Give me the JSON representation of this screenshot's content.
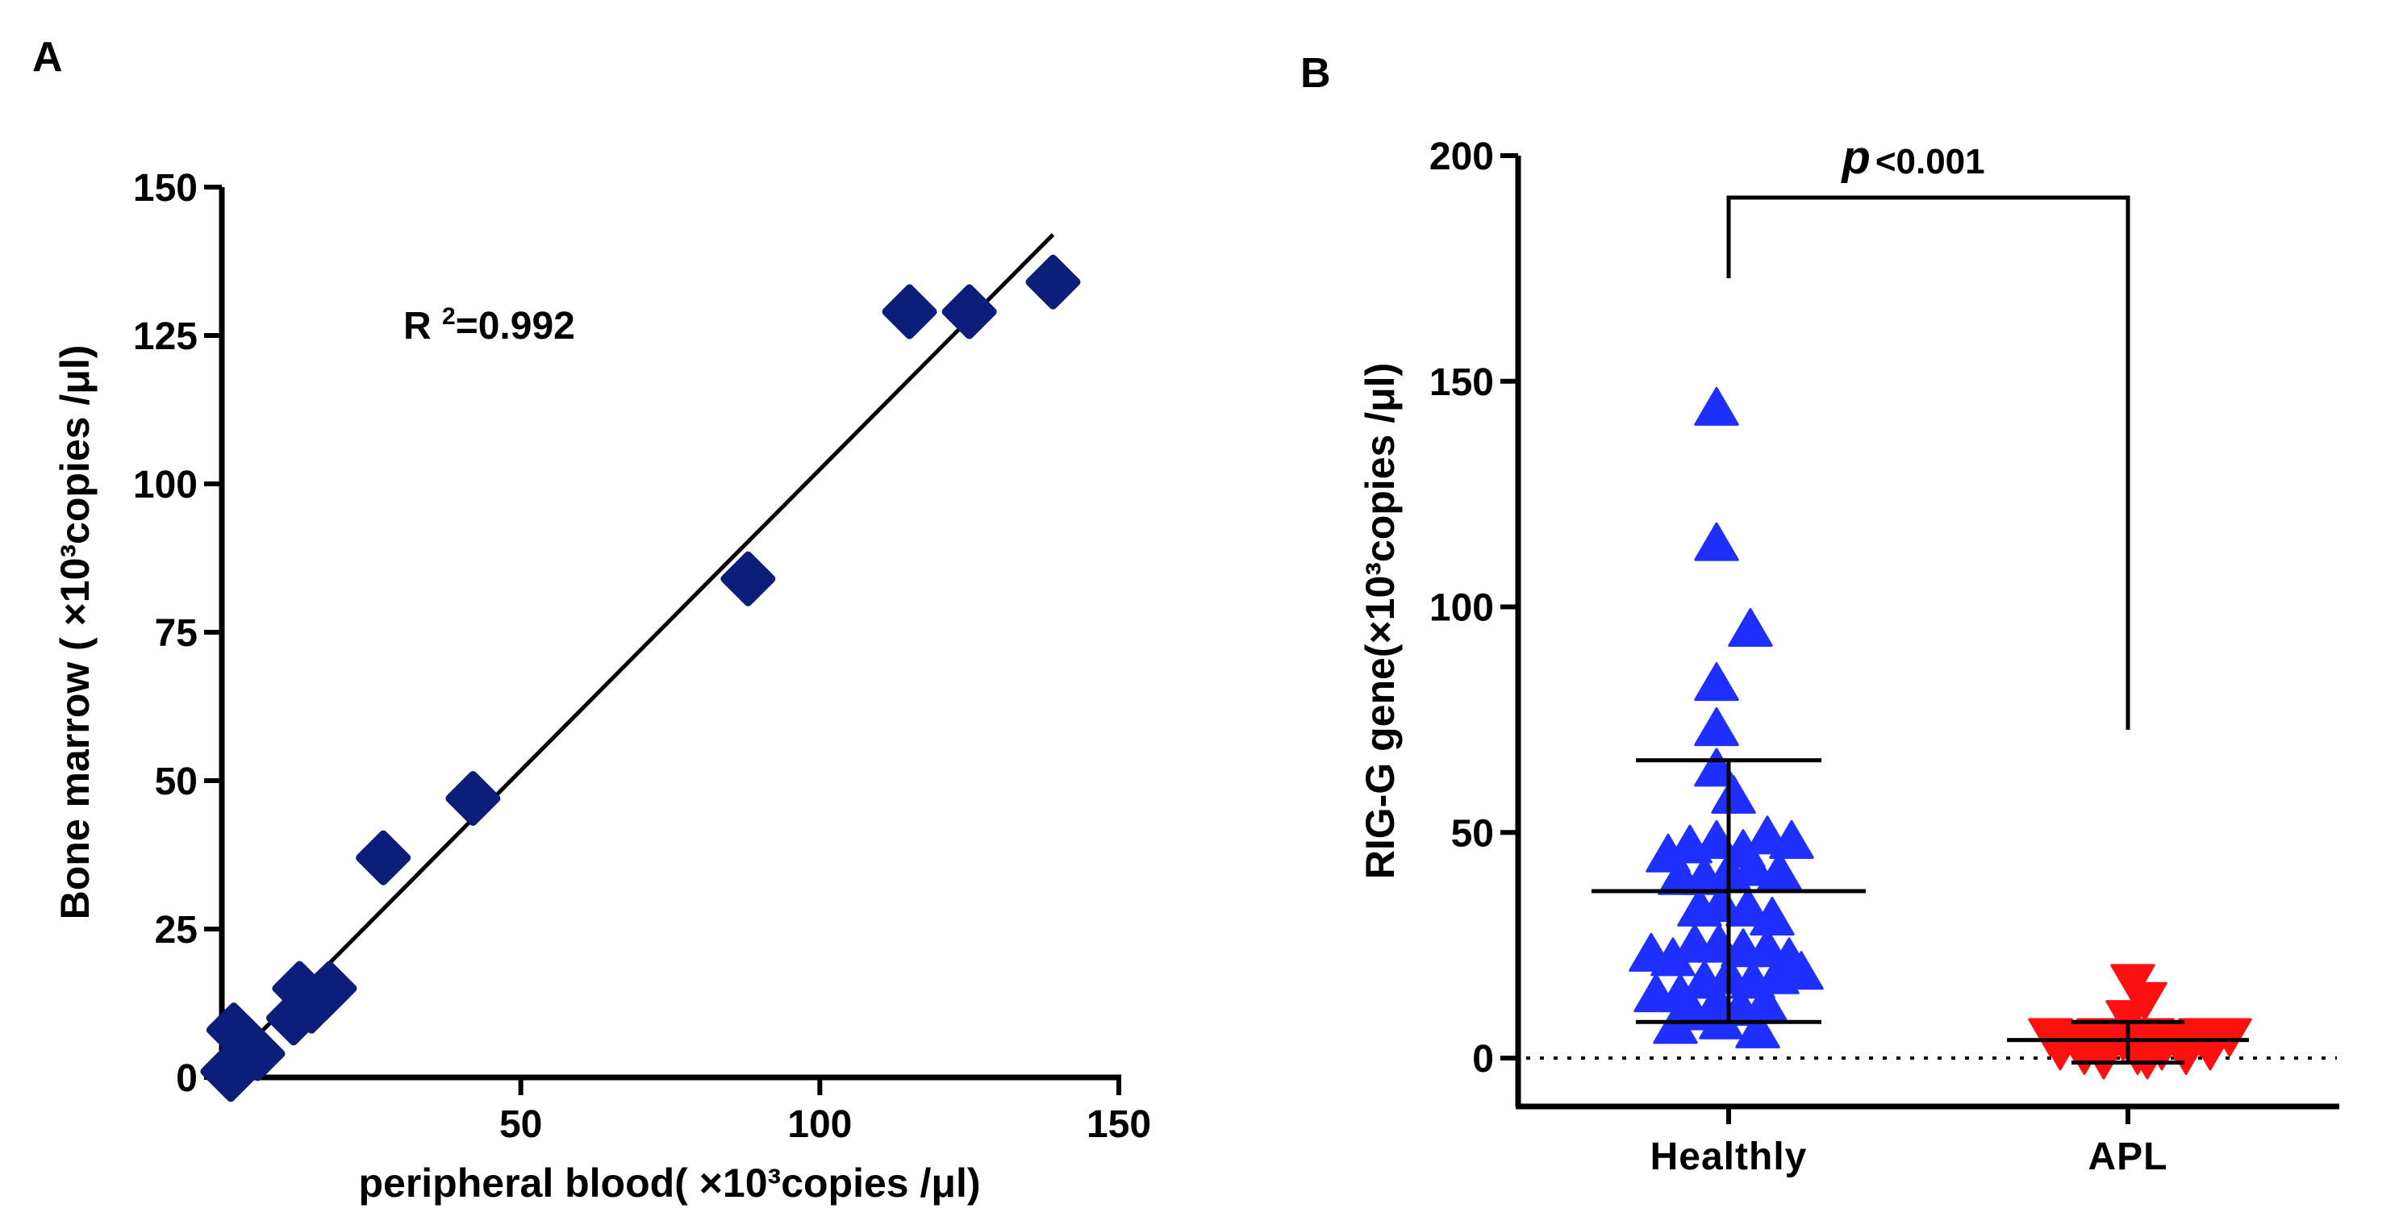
{
  "chart_data": [
    {
      "panel": "A",
      "type": "scatter",
      "xlabel": "peripheral blood( ×10³copies /μl)",
      "ylabel": "Bone marrow ( ×10³copies /μl)",
      "xlim": [
        0,
        150
      ],
      "ylim": [
        0,
        150
      ],
      "xticks": [
        50,
        100,
        150
      ],
      "yticks": [
        0,
        25,
        50,
        75,
        100,
        125,
        150
      ],
      "annotation": "R²=0.992",
      "marker": "diamond",
      "color": "#0d1d7a",
      "points": [
        {
          "x": 1,
          "y": 1
        },
        {
          "x": 2,
          "y": 2
        },
        {
          "x": 1.5,
          "y": 0.5
        },
        {
          "x": 2,
          "y": 8
        },
        {
          "x": 4,
          "y": 6
        },
        {
          "x": 6,
          "y": 4
        },
        {
          "x": 12,
          "y": 10
        },
        {
          "x": 13,
          "y": 15
        },
        {
          "x": 15,
          "y": 12
        },
        {
          "x": 17,
          "y": 14
        },
        {
          "x": 18,
          "y": 15
        },
        {
          "x": 27,
          "y": 37
        },
        {
          "x": 42,
          "y": 47
        },
        {
          "x": 88,
          "y": 84
        },
        {
          "x": 115,
          "y": 129
        },
        {
          "x": 125,
          "y": 129
        },
        {
          "x": 139,
          "y": 134
        }
      ],
      "fit_line": {
        "x": [
          1,
          139
        ],
        "y": [
          2,
          142
        ]
      }
    },
    {
      "panel": "B",
      "type": "scatter",
      "ylabel": "RIG-G gene(×10³copies /μl)",
      "ylim": [
        0,
        200
      ],
      "yticks": [
        0,
        50,
        100,
        150,
        200
      ],
      "categories": [
        "Healthly",
        "APL"
      ],
      "significance": {
        "prefix": "p",
        "text": "<0.001"
      },
      "series": [
        {
          "name": "Healthly",
          "marker": "triangle-up",
          "color": "#1f2fff",
          "mean": 37,
          "sd_low": 8,
          "sd_high": 66,
          "points": [
            {
              "dx": -0.05,
              "y": 144
            },
            {
              "dx": -0.05,
              "y": 114
            },
            {
              "dx": 0.09,
              "y": 95
            },
            {
              "dx": -0.05,
              "y": 83
            },
            {
              "dx": -0.05,
              "y": 73
            },
            {
              "dx": -0.05,
              "y": 64
            },
            {
              "dx": 0.02,
              "y": 58
            },
            {
              "dx": -0.25,
              "y": 45
            },
            {
              "dx": -0.16,
              "y": 47
            },
            {
              "dx": -0.05,
              "y": 48
            },
            {
              "dx": 0.06,
              "y": 46
            },
            {
              "dx": 0.16,
              "y": 49
            },
            {
              "dx": 0.26,
              "y": 48
            },
            {
              "dx": -0.2,
              "y": 40
            },
            {
              "dx": -0.1,
              "y": 40
            },
            {
              "dx": 0.0,
              "y": 41
            },
            {
              "dx": 0.1,
              "y": 42
            },
            {
              "dx": 0.21,
              "y": 41
            },
            {
              "dx": -0.12,
              "y": 33
            },
            {
              "dx": -0.03,
              "y": 34
            },
            {
              "dx": 0.08,
              "y": 33
            },
            {
              "dx": 0.18,
              "y": 31
            },
            {
              "dx": -0.32,
              "y": 23
            },
            {
              "dx": -0.23,
              "y": 22
            },
            {
              "dx": -0.14,
              "y": 25
            },
            {
              "dx": -0.04,
              "y": 25
            },
            {
              "dx": 0.06,
              "y": 24
            },
            {
              "dx": 0.16,
              "y": 24
            },
            {
              "dx": 0.25,
              "y": 22
            },
            {
              "dx": -0.3,
              "y": 14
            },
            {
              "dx": -0.2,
              "y": 14
            },
            {
              "dx": -0.1,
              "y": 17
            },
            {
              "dx": 0.0,
              "y": 18
            },
            {
              "dx": 0.1,
              "y": 17
            },
            {
              "dx": 0.2,
              "y": 18
            },
            {
              "dx": 0.3,
              "y": 19
            },
            {
              "dx": -0.15,
              "y": 10
            },
            {
              "dx": -0.05,
              "y": 12
            },
            {
              "dx": 0.05,
              "y": 11
            },
            {
              "dx": 0.15,
              "y": 12
            },
            {
              "dx": -0.22,
              "y": 7
            },
            {
              "dx": -0.03,
              "y": 8
            },
            {
              "dx": 0.12,
              "y": 6
            }
          ]
        },
        {
          "name": "APL",
          "marker": "triangle-down",
          "color": "#ff1010",
          "mean": 4,
          "sd_low": -1,
          "sd_high": 8,
          "points": [
            {
              "dx": 0.02,
              "y": 17
            },
            {
              "dx": 0.07,
              "y": 13
            },
            {
              "dx": 0.0,
              "y": 9
            },
            {
              "dx": -0.32,
              "y": 5
            },
            {
              "dx": -0.22,
              "y": 4
            },
            {
              "dx": -0.12,
              "y": 5
            },
            {
              "dx": -0.02,
              "y": 4
            },
            {
              "dx": 0.1,
              "y": 5
            },
            {
              "dx": 0.2,
              "y": 4
            },
            {
              "dx": 0.3,
              "y": 5
            },
            {
              "dx": 0.42,
              "y": 5
            },
            {
              "dx": -0.28,
              "y": 2
            },
            {
              "dx": -0.18,
              "y": 1
            },
            {
              "dx": -0.08,
              "y": 2
            },
            {
              "dx": 0.04,
              "y": 1
            },
            {
              "dx": 0.14,
              "y": 2
            },
            {
              "dx": 0.24,
              "y": 1
            },
            {
              "dx": 0.34,
              "y": 2
            },
            {
              "dx": -0.1,
              "y": 0
            },
            {
              "dx": 0.08,
              "y": 0
            }
          ]
        }
      ]
    }
  ]
}
